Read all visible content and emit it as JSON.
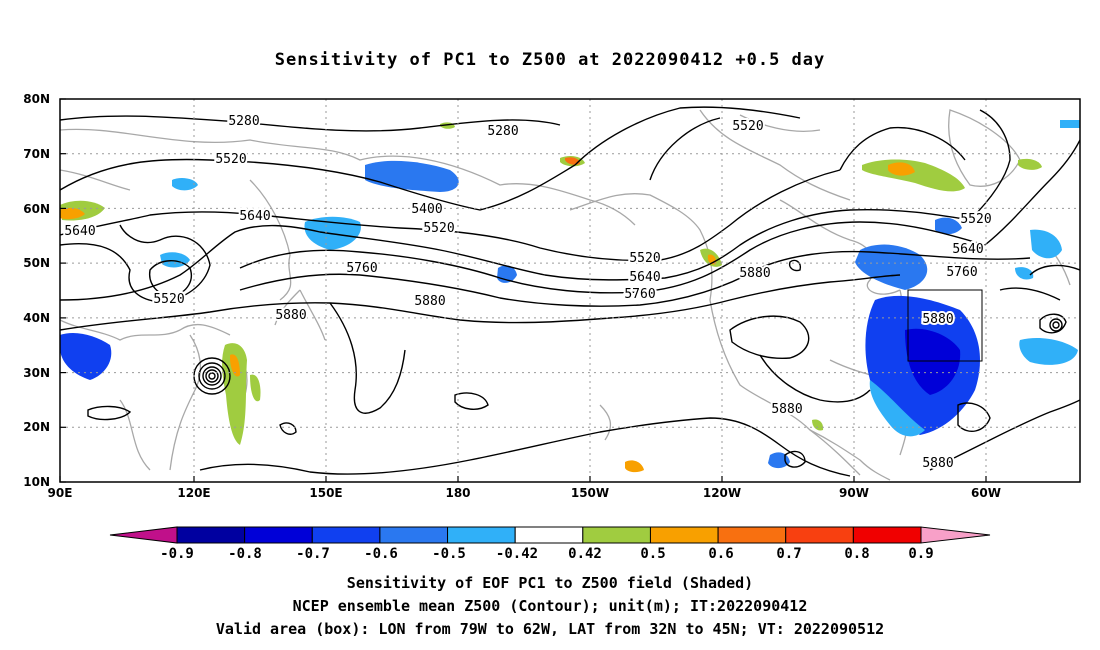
{
  "title": "Sensitivity of PC1 to Z500 at 2022090412 +0.5 day",
  "map": {
    "lat_labels": [
      "80N",
      "70N",
      "60N",
      "50N",
      "40N",
      "30N",
      "20N",
      "10N"
    ],
    "lon_labels": [
      "90E",
      "120E",
      "150E",
      "180",
      "150W",
      "120W",
      "90W",
      "60W"
    ],
    "contour_levels": [
      "5280",
      "5280",
      "5520",
      "5520",
      "5520",
      "5640",
      "5640",
      "5400",
      "5520",
      "5520",
      "5640",
      "5760",
      "5760",
      "5880",
      "5880",
      "5880",
      "5880",
      "5880",
      "5520",
      "5640",
      "5760",
      "5880"
    ],
    "box": {
      "lon_from": "79W",
      "lon_to": "62W",
      "lat_from": "32N",
      "lat_to": "45N"
    }
  },
  "colorbar": {
    "labels": [
      "-0.9",
      "-0.8",
      "-0.7",
      "-0.6",
      "-0.5",
      "-0.42",
      "0.42",
      "0.5",
      "0.6",
      "0.7",
      "0.8",
      "0.9"
    ],
    "colors": [
      "#0000a0",
      "#0000d8",
      "#1040f0",
      "#2a78f0",
      "#30b0f8",
      "#ffffff",
      "#a0cc40",
      "#f8a000",
      "#f87010",
      "#f84010",
      "#f00000"
    ],
    "under_color": "#c0108a",
    "over_color": "#f8a0c8"
  },
  "footer": {
    "line1": "Sensitivity of EOF PC1 to Z500 field (Shaded)",
    "line2": "NCEP ensemble mean Z500 (Contour); unit(m); IT:2022090412",
    "line3": "Valid area (box): LON from 79W to 62W, LAT from 32N to 45N; VT: 2022090512"
  }
}
